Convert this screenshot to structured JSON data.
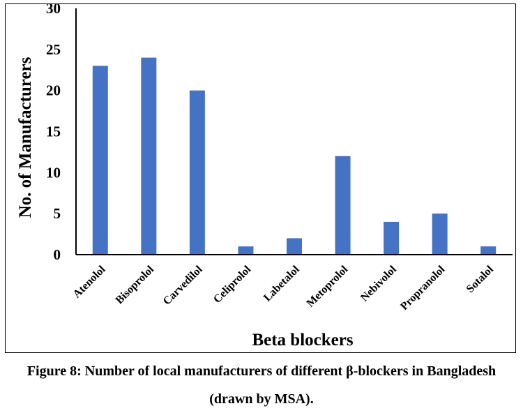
{
  "chart_data": {
    "type": "bar",
    "categories": [
      "Atenolol",
      "Bisoprolol",
      "Carvedilol",
      "Celiprolol",
      "Labetalol",
      "Metoprolol",
      "Nebivolol",
      "Propranolol",
      "Sotalol"
    ],
    "values": [
      23,
      24,
      20,
      1,
      2,
      12,
      4,
      5,
      1
    ],
    "xlabel": "Beta blockers",
    "ylabel": "No. of Manufacturers",
    "ylim": [
      0,
      30
    ],
    "yticks": [
      0,
      5,
      10,
      15,
      20,
      25,
      30
    ],
    "bar_color": "#4472C4",
    "grid": false,
    "legend": "none"
  },
  "caption": {
    "line1": "Figure 8: Number of local manufacturers of different β-blockers in Bangladesh",
    "line2": "(drawn by MSA)."
  }
}
